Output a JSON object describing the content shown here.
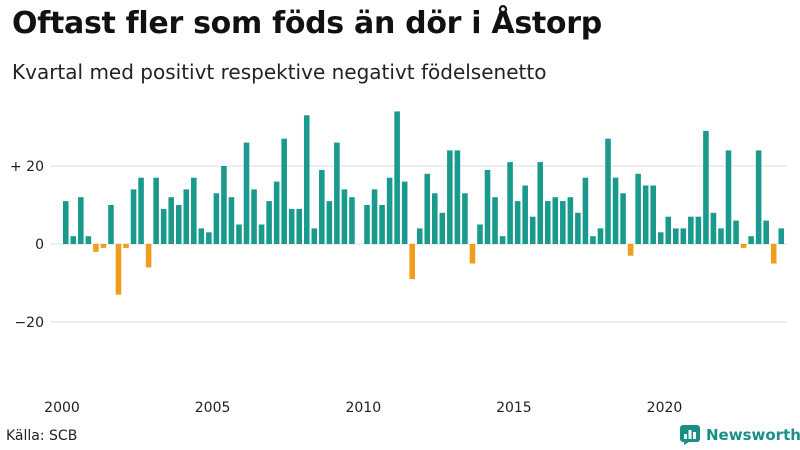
{
  "title": "Oftast fler som föds än dör i Åstorp",
  "subtitle": "Kvartal med positivt respektive negativt födelsenetto",
  "source": "Källa: SCB",
  "brand": "Newsworthy",
  "colors": {
    "positive": "#1a9a8c",
    "negative": "#f29c1c",
    "grid": "#dcdcdc",
    "brand": "#1a8f86"
  },
  "chart_data": {
    "type": "bar",
    "title": "Oftast fler som föds än dör i Åstorp",
    "subtitle": "Kvartal med positivt respektive negativt födelsenetto",
    "xlabel": "",
    "ylabel": "",
    "ylim": [
      -32,
      36
    ],
    "start_year": 2000,
    "quarters_per_year": 4,
    "x_tick_labels": [
      "2000",
      "2005",
      "2010",
      "2015",
      "2020"
    ],
    "y_ticks": [
      {
        "value": 20,
        "label": "+ 20"
      },
      {
        "value": 0,
        "label": "0"
      },
      {
        "value": -20,
        "label": "−20"
      }
    ],
    "grid": true,
    "values": [
      11,
      2,
      12,
      2,
      -2,
      -1,
      10,
      -13,
      -1,
      14,
      17,
      -6,
      17,
      9,
      12,
      10,
      14,
      17,
      4,
      3,
      13,
      20,
      12,
      5,
      26,
      14,
      5,
      11,
      16,
      27,
      9,
      9,
      33,
      4,
      19,
      11,
      26,
      14,
      12,
      0,
      10,
      14,
      10,
      17,
      34,
      16,
      -9,
      4,
      18,
      13,
      8,
      24,
      24,
      13,
      -5,
      5,
      19,
      12,
      2,
      21,
      11,
      15,
      7,
      21,
      11,
      12,
      11,
      12,
      8,
      17,
      2,
      4,
      27,
      17,
      13,
      -3,
      18,
      15,
      15,
      3,
      7,
      4,
      4,
      7,
      7,
      29,
      8,
      4,
      24,
      6,
      -1,
      2,
      24,
      6,
      -5,
      4
    ]
  }
}
